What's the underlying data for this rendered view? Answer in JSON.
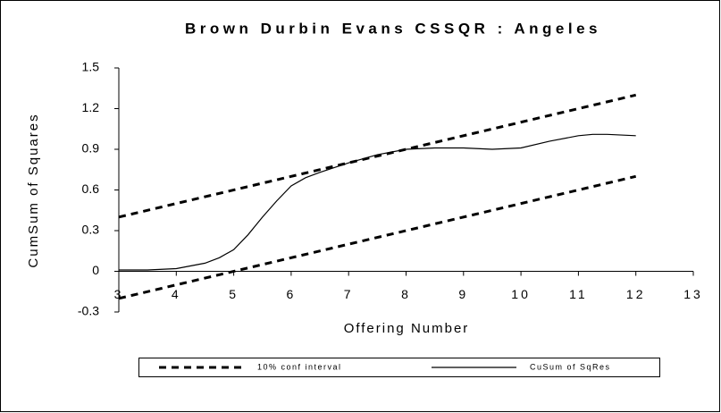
{
  "chart_data": {
    "type": "line",
    "title": "Brown Durbin Evans CSSQR : Angeles",
    "x_label": "Offering Number",
    "y_label": "CumSum of Squares",
    "xlim": [
      3,
      13
    ],
    "xticks": [
      3,
      4,
      5,
      6,
      7,
      8,
      9,
      10,
      11,
      12,
      13
    ],
    "ylim": [
      -0.3,
      1.5
    ],
    "yticks": [
      -0.3,
      0,
      0.3,
      0.6,
      0.9,
      1.2,
      1.5
    ],
    "grid": false,
    "legend": "bottom",
    "series": [
      {
        "name": "10% conf interval",
        "color": "#000000",
        "style": "dashed",
        "x": [
          3,
          12
        ],
        "values": [
          0.4,
          1.3
        ]
      },
      {
        "name": "10% conf interval",
        "color": "#000000",
        "style": "dashed",
        "legend": false,
        "x": [
          3,
          12
        ],
        "values": [
          -0.2,
          0.7
        ]
      },
      {
        "name": "CuSum of SqRes",
        "color": "#000000",
        "style": "solid",
        "x": [
          3,
          3.5,
          4,
          4.5,
          4.75,
          5,
          5.25,
          5.5,
          5.75,
          6,
          6.25,
          6.5,
          7,
          7.5,
          8,
          8.5,
          9,
          9.5,
          10,
          10.5,
          11,
          11.25,
          11.5,
          12
        ],
        "values": [
          0.01,
          0.01,
          0.02,
          0.06,
          0.1,
          0.16,
          0.27,
          0.4,
          0.52,
          0.63,
          0.69,
          0.73,
          0.8,
          0.86,
          0.9,
          0.91,
          0.91,
          0.9,
          0.91,
          0.96,
          1.0,
          1.01,
          1.01,
          1.0
        ]
      }
    ]
  }
}
